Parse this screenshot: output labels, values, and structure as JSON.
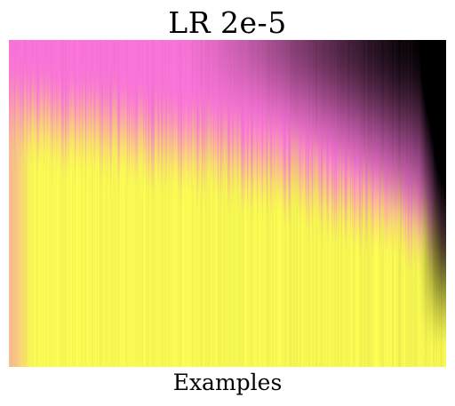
{
  "chart_data": {
    "type": "heatmap",
    "title": "LR 2e-5",
    "xlabel": "Examples",
    "ylabel": "",
    "colormap": {
      "start": "#ff77dd",
      "end": "#ffff55",
      "shade": "#000000"
    },
    "grid": false,
    "legend": "none"
  }
}
